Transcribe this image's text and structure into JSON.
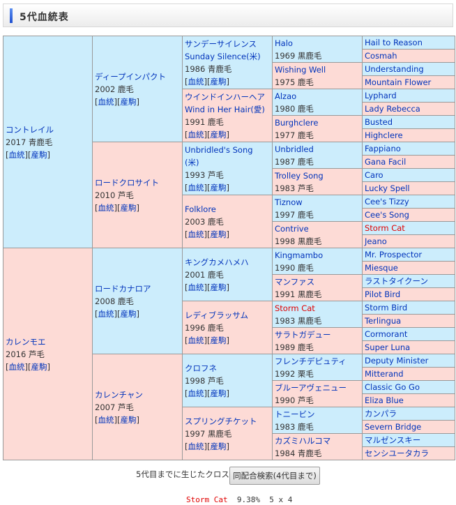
{
  "header": {
    "title": "5代血統表"
  },
  "link_labels": {
    "pedigree": "血統",
    "progeny": "産駒"
  },
  "pedigree": {
    "gen1": [
      {
        "name": "コントレイル",
        "info": "2017 青鹿毛",
        "links": true
      },
      {
        "name": "カレンモエ",
        "info": "2016 芦毛",
        "links": true
      }
    ],
    "gen2": [
      {
        "name": "ディープインパクト",
        "info": "2002 鹿毛",
        "links": true
      },
      {
        "name": "ロードクロサイト",
        "info": "2010 芦毛",
        "links": true
      },
      {
        "name": "ロードカナロア",
        "info": "2008 鹿毛",
        "links": true
      },
      {
        "name": "カレンチャン",
        "info": "2007 芦毛",
        "links": true
      }
    ],
    "gen3": [
      {
        "name": "サンデーサイレンス",
        "name2": "Sunday Silence(米)",
        "info": "1986 青鹿毛",
        "links": true
      },
      {
        "name": "ウインドインハーヘア",
        "name2": "Wind in Her Hair(愛)",
        "info": "1991 鹿毛",
        "links": true
      },
      {
        "name": "Unbridled's Song",
        "name2": "(米)",
        "info": "1993 芦毛",
        "links": true
      },
      {
        "name": "Folklore",
        "info": "2003 鹿毛",
        "links": true
      },
      {
        "name": "キングカメハメハ",
        "info": "2001 鹿毛",
        "links": true
      },
      {
        "name": "レディブラッサム",
        "info": "1996 鹿毛",
        "links": true
      },
      {
        "name": "クロフネ",
        "info": "1998 芦毛",
        "links": true
      },
      {
        "name": "スプリングチケット",
        "info": "1997 黒鹿毛",
        "links": true
      }
    ],
    "gen4": [
      {
        "name": "Halo",
        "info": "1969 黒鹿毛"
      },
      {
        "name": "Wishing Well",
        "info": "1975 鹿毛"
      },
      {
        "name": "Alzao",
        "info": "1980 鹿毛"
      },
      {
        "name": "Burghclere",
        "info": "1977 鹿毛"
      },
      {
        "name": "Unbridled",
        "info": "1987 鹿毛"
      },
      {
        "name": "Trolley Song",
        "info": "1983 芦毛"
      },
      {
        "name": "Tiznow",
        "info": "1997 鹿毛"
      },
      {
        "name": "Contrive",
        "info": "1998 黒鹿毛"
      },
      {
        "name": "Kingmambo",
        "info": "1990 鹿毛"
      },
      {
        "name": "マンファス",
        "info": "1991 黒鹿毛"
      },
      {
        "name": "Storm Cat",
        "info": "1983 黒鹿毛",
        "cross": true
      },
      {
        "name": "サラトガデュー",
        "info": "1989 鹿毛"
      },
      {
        "name": "フレンチデピュティ",
        "info": "1992 栗毛"
      },
      {
        "name": "ブルーアヴェニュー",
        "info": "1990 芦毛"
      },
      {
        "name": "トニービン",
        "info": "1983 鹿毛"
      },
      {
        "name": "カズミハルコマ",
        "info": "1984 青鹿毛"
      }
    ],
    "gen5": [
      {
        "name": "Hail to Reason"
      },
      {
        "name": "Cosmah"
      },
      {
        "name": "Understanding"
      },
      {
        "name": "Mountain Flower"
      },
      {
        "name": "Lyphard"
      },
      {
        "name": "Lady Rebecca"
      },
      {
        "name": "Busted"
      },
      {
        "name": "Highclere"
      },
      {
        "name": "Fappiano"
      },
      {
        "name": "Gana Facil"
      },
      {
        "name": "Caro"
      },
      {
        "name": "Lucky Spell"
      },
      {
        "name": "Cee's Tizzy"
      },
      {
        "name": "Cee's Song"
      },
      {
        "name": "Storm Cat",
        "cross": true
      },
      {
        "name": "Jeano"
      },
      {
        "name": "Mr. Prospector"
      },
      {
        "name": "Miesque"
      },
      {
        "name": "ラストタイクーン"
      },
      {
        "name": "Pilot Bird"
      },
      {
        "name": "Storm Bird"
      },
      {
        "name": "Terlingua"
      },
      {
        "name": "Cormorant"
      },
      {
        "name": "Super Luna"
      },
      {
        "name": "Deputy Minister"
      },
      {
        "name": "Mitterand"
      },
      {
        "name": "Classic Go Go"
      },
      {
        "name": "Eliza Blue"
      },
      {
        "name": "カンパラ"
      },
      {
        "name": "Severn Bridge"
      },
      {
        "name": "マルゼンスキー"
      },
      {
        "name": "センシユータカラ"
      }
    ]
  },
  "cross": {
    "label": "5代目までに生じたクロス",
    "search_button": "同配合検索(4代目まで)",
    "results": [
      {
        "name": "Storm Cat",
        "percent": "9.38%",
        "generations": "5 x 4"
      }
    ]
  },
  "colors": {
    "sire_bg": "#ccedfc",
    "dam_bg": "#fddbd6",
    "link": "#0033bb",
    "cross_highlight": "#e00000"
  }
}
